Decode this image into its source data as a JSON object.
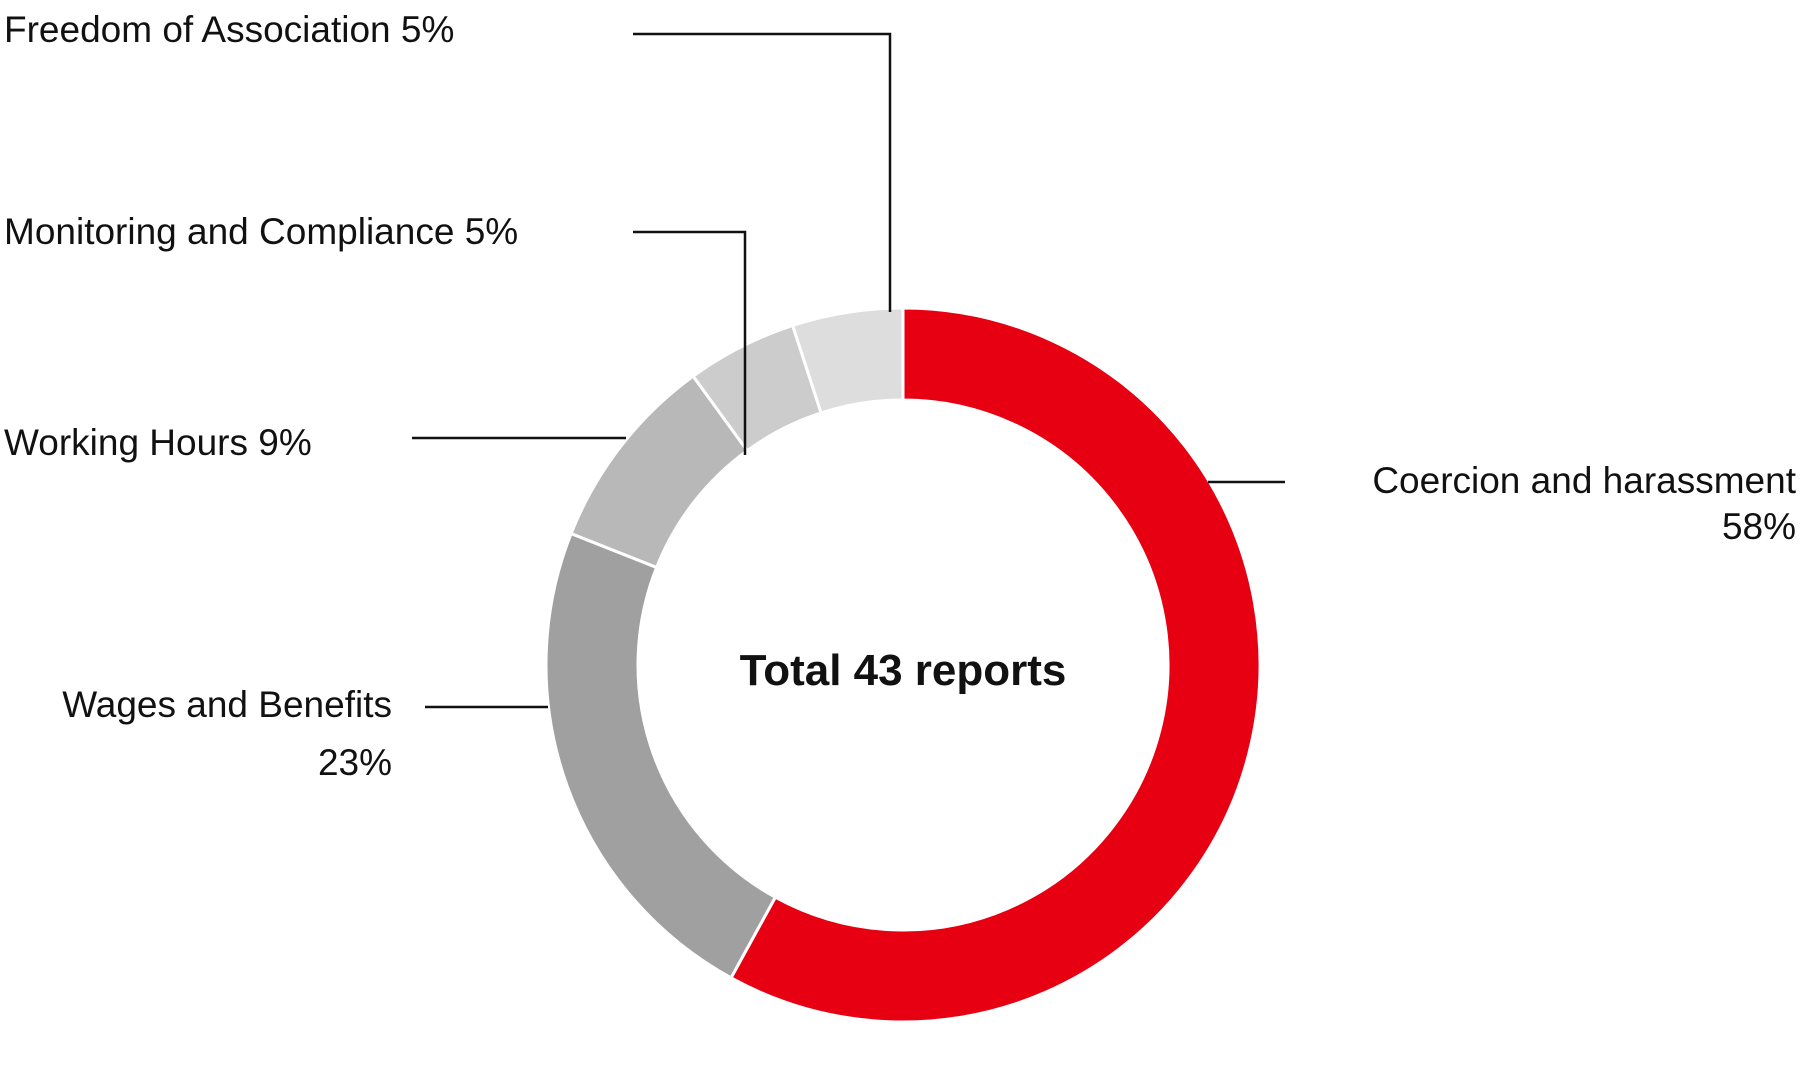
{
  "chart_data": {
    "type": "pie",
    "variant": "donut",
    "center_text": "Total 43 reports",
    "slices": [
      {
        "label": "Coercion and harassment",
        "value": 58,
        "value_label": "58%",
        "color": "#e60012"
      },
      {
        "label": "Wages and Benefits",
        "value": 23,
        "value_label": "23%",
        "color": "#a0a0a0"
      },
      {
        "label": "Working Hours",
        "value": 9,
        "value_label": "9%",
        "color": "#b8b8b8"
      },
      {
        "label": "Monitoring and Compliance",
        "value": 5,
        "value_label": "5%",
        "color": "#cccccc"
      },
      {
        "label": "Freedom of Association",
        "value": 5,
        "value_label": "5%",
        "color": "#dddddd"
      }
    ],
    "legend": "none",
    "start": "top",
    "direction": "clockwise"
  }
}
